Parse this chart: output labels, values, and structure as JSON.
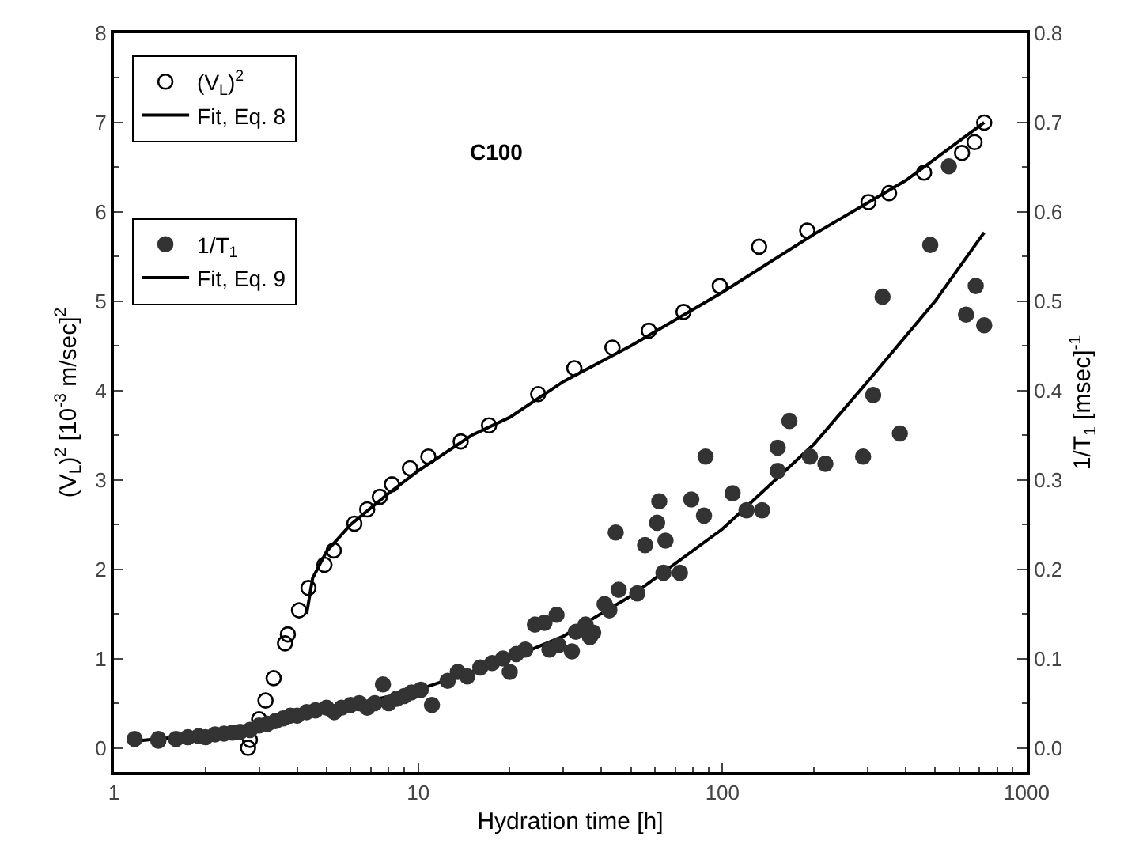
{
  "chart_data": {
    "type": "scatter",
    "xlabel": "Hydration time [h]",
    "ylabel": "(V$_{L}$)$^{2}$ [10$^{-3}$ m/sec]$^{2}$",
    "y2label": "1/T$_{1}$ [msec]$^{-1}$",
    "annotations": [
      "C100"
    ],
    "log": "x",
    "xlim": [
      1,
      1000
    ],
    "xticks": [
      1,
      10,
      100,
      1000
    ],
    "ylim": [
      -0.27,
      8
    ],
    "yticks": [
      0,
      1,
      2,
      3,
      4,
      5,
      6,
      7,
      8
    ],
    "y2lim": [
      -0.027,
      0.8
    ],
    "y2ticks": [
      {
        "value": 0,
        "label": "0.0"
      },
      0.1,
      0.2,
      0.3,
      0.4,
      0.5,
      0.6,
      0.7,
      0.8
    ],
    "legend": "top left",
    "series": [
      {
        "name": "(V$_{L}$)$^{2}$",
        "marker": "circle-open",
        "color": "#000000",
        "x": [
          2.76,
          2.8,
          3.0,
          3.15,
          3.35,
          3.65,
          3.73,
          4.06,
          4.36,
          4.92,
          5.28,
          6.17,
          6.8,
          7.48,
          8.2,
          9.4,
          10.8,
          13.8,
          17.1,
          24.8,
          32.6,
          43.5,
          57.3,
          74.5,
          98,
          132,
          190,
          302,
          353,
          460,
          613,
          674,
          725
        ],
        "values": [
          0.0,
          0.09,
          0.32,
          0.53,
          0.78,
          1.17,
          1.27,
          1.54,
          1.79,
          2.05,
          2.21,
          2.51,
          2.67,
          2.81,
          2.95,
          3.13,
          3.26,
          3.43,
          3.61,
          3.96,
          4.25,
          4.48,
          4.67,
          4.88,
          5.17,
          5.61,
          5.79,
          6.11,
          6.21,
          6.44,
          6.66,
          6.78,
          7.0
        ]
      },
      {
        "name": "Fit, Eq. 8",
        "type": "line",
        "marker": "none",
        "color": "#000000",
        "x": [
          4.3,
          4.5,
          5,
          6,
          8,
          10,
          15,
          20,
          30,
          50,
          100,
          200,
          400,
          725
        ],
        "values": [
          1.5,
          1.9,
          2.2,
          2.5,
          2.85,
          3.1,
          3.5,
          3.7,
          4.1,
          4.5,
          5.1,
          5.75,
          6.35,
          7.0
        ]
      },
      {
        "name": "1/T$_{1}$",
        "marker": "circle",
        "color": "#333333",
        "axis": "y2",
        "x": [
          1.17,
          1.4,
          1.4,
          1.6,
          1.75,
          1.9,
          2.0,
          2.15,
          2.3,
          2.45,
          2.6,
          2.8,
          3.0,
          3.2,
          3.4,
          3.6,
          3.8,
          4.0,
          4.3,
          4.6,
          5.0,
          5.3,
          5.6,
          6.0,
          6.4,
          6.8,
          7.2,
          7.66,
          8.0,
          8.5,
          9.0,
          9.5,
          10.2,
          11.1,
          12.5,
          13.5,
          14.5,
          16,
          17.5,
          19,
          20,
          21,
          22.5,
          24.2,
          26,
          28.5,
          27,
          28.9,
          32,
          33,
          35.5,
          36.7,
          37.6,
          41,
          42.5,
          44.6,
          45.6,
          52.5,
          55.7,
          61,
          62,
          64,
          65,
          72.5,
          79,
          87,
          88,
          108,
          120,
          135,
          152,
          152,
          166,
          194,
          218,
          290,
          313,
          336,
          383,
          482,
          555,
          632,
          680,
          725
        ],
        "values": [
          0.01,
          0.008,
          0.01,
          0.01,
          0.012,
          0.013,
          0.012,
          0.015,
          0.016,
          0.017,
          0.018,
          0.02,
          0.025,
          0.027,
          0.03,
          0.033,
          0.036,
          0.036,
          0.04,
          0.042,
          0.045,
          0.04,
          0.045,
          0.048,
          0.05,
          0.045,
          0.05,
          0.071,
          0.05,
          0.055,
          0.058,
          0.062,
          0.065,
          0.048,
          0.075,
          0.085,
          0.08,
          0.09,
          0.095,
          0.1,
          0.085,
          0.105,
          0.11,
          0.138,
          0.14,
          0.149,
          0.11,
          0.115,
          0.108,
          0.13,
          0.138,
          0.124,
          0.129,
          0.161,
          0.154,
          0.241,
          0.177,
          0.173,
          0.227,
          0.252,
          0.276,
          0.196,
          0.232,
          0.196,
          0.278,
          0.26,
          0.326,
          0.285,
          0.266,
          0.266,
          0.31,
          0.336,
          0.366,
          0.326,
          0.318,
          0.326,
          0.395,
          0.505,
          0.352,
          0.563,
          0.651,
          0.485,
          0.517,
          0.473
        ]
      },
      {
        "name": "Fit, Eq. 9",
        "type": "line",
        "marker": "none",
        "color": "#000000",
        "axis": "y2",
        "x": [
          1.2,
          2,
          3,
          5,
          10,
          20,
          30,
          50,
          100,
          200,
          300,
          500,
          725
        ],
        "values": [
          0.008,
          0.015,
          0.025,
          0.042,
          0.065,
          0.1,
          0.125,
          0.17,
          0.245,
          0.34,
          0.41,
          0.5,
          0.577
        ]
      }
    ]
  }
}
